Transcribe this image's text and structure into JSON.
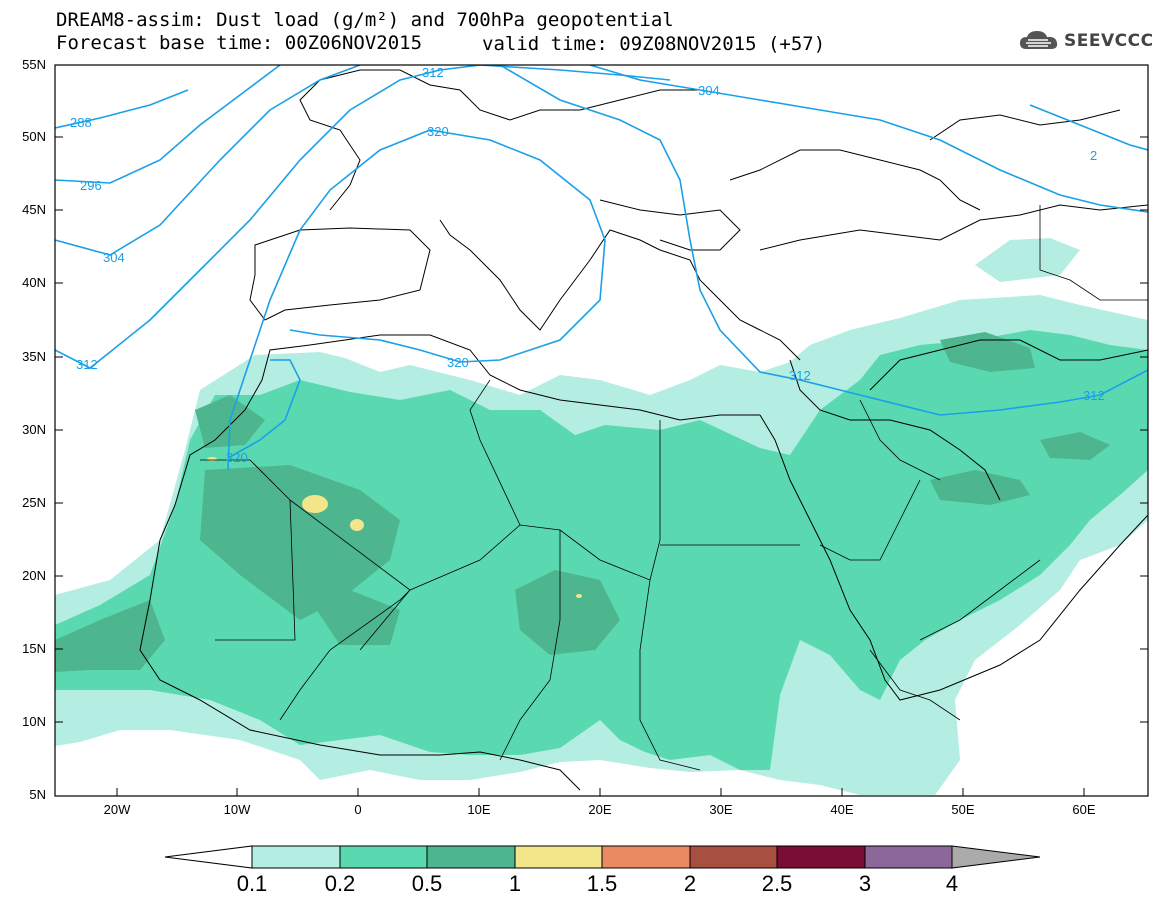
{
  "header": {
    "title_line1": "DREAM8-assim: Dust load (g/m²) and 700hPa geopotential",
    "title_line2": "Forecast base time: 00Z06NOV2015",
    "valid_time": "valid time: 09Z08NOV2015 (+57)",
    "logo_text": "SEEVCCC",
    "logo_icon": "cloud-icon"
  },
  "map": {
    "lat_labels": [
      "55N",
      "50N",
      "45N",
      "40N",
      "35N",
      "30N",
      "25N",
      "20N",
      "15N",
      "10N",
      "5N"
    ],
    "lon_labels": [
      "20W",
      "10W",
      "0",
      "10E",
      "20E",
      "30E",
      "40E",
      "50E",
      "60E"
    ],
    "contour_labels": [
      "288",
      "296",
      "304",
      "312",
      "320",
      "312",
      "304",
      "312",
      "320",
      "320",
      "312",
      "312",
      "304",
      "2"
    ],
    "colors": {
      "level_0_1": "#b4ede1",
      "level_0_2": "#5ad8b0",
      "level_0_5": "#4db68f",
      "level_1": "#f2e58a",
      "contour": "#1aa0e8",
      "coast": "#000000"
    }
  },
  "colorbar": {
    "labels": [
      "0.1",
      "0.2",
      "0.5",
      "1",
      "1.5",
      "2",
      "2.5",
      "3",
      "4"
    ],
    "colors": [
      "#b4ede1",
      "#5ad8b0",
      "#4db68f",
      "#f2e58a",
      "#e98a62",
      "#a8503f",
      "#7a0d33",
      "#8c679a"
    ],
    "low_end_color": "#ffffff",
    "high_end_color": "#aaaaaa"
  }
}
